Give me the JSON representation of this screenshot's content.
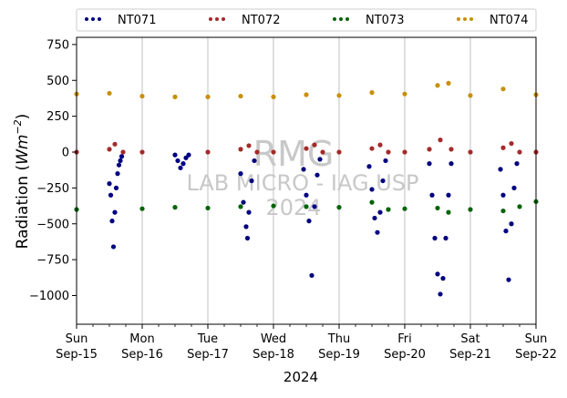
{
  "chart_data": {
    "type": "scatter",
    "title": "",
    "xlabel": "2024",
    "ylabel_main": "Radiation (",
    "ylabel_unit_base": "Wm",
    "ylabel_unit_sup": "−2",
    "ylabel_close": ")",
    "ylim": [
      -1200,
      800
    ],
    "yticks": [
      {
        "v": 750,
        "label": "750"
      },
      {
        "v": 500,
        "label": "500"
      },
      {
        "v": 250,
        "label": "250"
      },
      {
        "v": 0,
        "label": "0"
      },
      {
        "v": -250,
        "label": "−250"
      },
      {
        "v": -500,
        "label": "−500"
      },
      {
        "v": -750,
        "label": "−750"
      },
      {
        "v": -1000,
        "label": "−1000"
      }
    ],
    "xlim": [
      "2024-09-15",
      "2024-09-22"
    ],
    "xticks": [
      {
        "d": 0,
        "day": "Sun",
        "date": "Sep-15"
      },
      {
        "d": 1,
        "day": "Mon",
        "date": "Sep-16"
      },
      {
        "d": 2,
        "day": "Tue",
        "date": "Sep-17"
      },
      {
        "d": 3,
        "day": "Wed",
        "date": "Sep-18"
      },
      {
        "d": 4,
        "day": "Thu",
        "date": "Sep-19"
      },
      {
        "d": 5,
        "day": "Fri",
        "date": "Sep-20"
      },
      {
        "d": 6,
        "day": "Sat",
        "date": "Sep-21"
      },
      {
        "d": 7,
        "day": "Sun",
        "date": "Sep-22"
      }
    ],
    "grid": "vertical",
    "legend_position": "top",
    "watermark": [
      "RMG",
      "LAB MICRO - IAG USP",
      "2024"
    ],
    "series": [
      {
        "name": "NT071",
        "color": "#000080",
        "points": [
          [
            "2024-09-15 12:00",
            -220
          ],
          [
            "2024-09-15 12:30",
            -300
          ],
          [
            "2024-09-15 13:00",
            -480
          ],
          [
            "2024-09-15 13:30",
            -660
          ],
          [
            "2024-09-15 14:00",
            -420
          ],
          [
            "2024-09-15 14:30",
            -250
          ],
          [
            "2024-09-15 15:00",
            -150
          ],
          [
            "2024-09-15 15:30",
            -90
          ],
          [
            "2024-09-15 16:00",
            -60
          ],
          [
            "2024-09-15 16:30",
            -30
          ],
          [
            "2024-09-16 12:00",
            -20
          ],
          [
            "2024-09-16 13:00",
            -60
          ],
          [
            "2024-09-16 14:00",
            -110
          ],
          [
            "2024-09-16 15:00",
            -80
          ],
          [
            "2024-09-16 16:00",
            -40
          ],
          [
            "2024-09-16 17:00",
            -20
          ],
          [
            "2024-09-17 12:00",
            -150
          ],
          [
            "2024-09-17 13:00",
            -350
          ],
          [
            "2024-09-17 14:00",
            -520
          ],
          [
            "2024-09-17 14:30",
            -600
          ],
          [
            "2024-09-17 15:00",
            -420
          ],
          [
            "2024-09-17 16:00",
            -200
          ],
          [
            "2024-09-17 17:00",
            -60
          ],
          [
            "2024-09-18 11:00",
            -120
          ],
          [
            "2024-09-18 12:00",
            -300
          ],
          [
            "2024-09-18 13:00",
            -480
          ],
          [
            "2024-09-18 14:00",
            -860
          ],
          [
            "2024-09-18 15:00",
            -380
          ],
          [
            "2024-09-18 16:00",
            -160
          ],
          [
            "2024-09-18 17:00",
            -50
          ],
          [
            "2024-09-19 11:00",
            -100
          ],
          [
            "2024-09-19 12:00",
            -260
          ],
          [
            "2024-09-19 13:00",
            -460
          ],
          [
            "2024-09-19 14:00",
            -560
          ],
          [
            "2024-09-19 15:00",
            -420
          ],
          [
            "2024-09-19 16:00",
            -200
          ],
          [
            "2024-09-19 17:00",
            -60
          ],
          [
            "2024-09-20 09:00",
            -80
          ],
          [
            "2024-09-20 10:00",
            -300
          ],
          [
            "2024-09-20 11:00",
            -600
          ],
          [
            "2024-09-20 12:00",
            -850
          ],
          [
            "2024-09-20 13:00",
            -990
          ],
          [
            "2024-09-20 14:00",
            -880
          ],
          [
            "2024-09-20 15:00",
            -600
          ],
          [
            "2024-09-20 16:00",
            -300
          ],
          [
            "2024-09-20 17:00",
            -80
          ],
          [
            "2024-09-21 11:00",
            -120
          ],
          [
            "2024-09-21 12:00",
            -300
          ],
          [
            "2024-09-21 13:00",
            -550
          ],
          [
            "2024-09-21 14:00",
            -890
          ],
          [
            "2024-09-21 15:00",
            -500
          ],
          [
            "2024-09-21 16:00",
            -250
          ],
          [
            "2024-09-21 17:00",
            -80
          ]
        ]
      },
      {
        "name": "NT072",
        "color": "#a52a2a",
        "points": [
          [
            "2024-09-15 00:00",
            0
          ],
          [
            "2024-09-15 12:00",
            20
          ],
          [
            "2024-09-15 14:00",
            55
          ],
          [
            "2024-09-15 17:00",
            0
          ],
          [
            "2024-09-16 00:00",
            0
          ],
          [
            "2024-09-17 00:00",
            0
          ],
          [
            "2024-09-17 12:00",
            20
          ],
          [
            "2024-09-17 15:00",
            45
          ],
          [
            "2024-09-17 18:00",
            0
          ],
          [
            "2024-09-18 00:00",
            0
          ],
          [
            "2024-09-18 12:00",
            25
          ],
          [
            "2024-09-18 15:00",
            50
          ],
          [
            "2024-09-18 18:00",
            0
          ],
          [
            "2024-09-19 00:00",
            0
          ],
          [
            "2024-09-19 12:00",
            25
          ],
          [
            "2024-09-19 15:00",
            50
          ],
          [
            "2024-09-19 18:00",
            0
          ],
          [
            "2024-09-20 00:00",
            0
          ],
          [
            "2024-09-20 09:00",
            20
          ],
          [
            "2024-09-20 13:00",
            85
          ],
          [
            "2024-09-20 17:00",
            20
          ],
          [
            "2024-09-21 00:00",
            0
          ],
          [
            "2024-09-21 12:00",
            30
          ],
          [
            "2024-09-21 15:00",
            60
          ],
          [
            "2024-09-21 18:00",
            0
          ],
          [
            "2024-09-22 00:00",
            0
          ]
        ]
      },
      {
        "name": "NT073",
        "color": "#006400",
        "points": [
          [
            "2024-09-15 00:00",
            -400
          ],
          [
            "2024-09-16 00:00",
            -395
          ],
          [
            "2024-09-16 12:00",
            -385
          ],
          [
            "2024-09-17 00:00",
            -390
          ],
          [
            "2024-09-17 12:00",
            -380
          ],
          [
            "2024-09-18 00:00",
            -375
          ],
          [
            "2024-09-18 12:00",
            -380
          ],
          [
            "2024-09-19 00:00",
            -385
          ],
          [
            "2024-09-19 12:00",
            -350
          ],
          [
            "2024-09-19 18:00",
            -400
          ],
          [
            "2024-09-20 00:00",
            -395
          ],
          [
            "2024-09-20 12:00",
            -390
          ],
          [
            "2024-09-20 16:00",
            -420
          ],
          [
            "2024-09-21 00:00",
            -400
          ],
          [
            "2024-09-21 12:00",
            -410
          ],
          [
            "2024-09-21 18:00",
            -380
          ],
          [
            "2024-09-22 00:00",
            -345
          ]
        ]
      },
      {
        "name": "NT074",
        "color": "#c8900a",
        "points": [
          [
            "2024-09-15 00:00",
            405
          ],
          [
            "2024-09-15 12:00",
            410
          ],
          [
            "2024-09-16 00:00",
            390
          ],
          [
            "2024-09-16 12:00",
            385
          ],
          [
            "2024-09-17 00:00",
            385
          ],
          [
            "2024-09-17 12:00",
            390
          ],
          [
            "2024-09-18 00:00",
            385
          ],
          [
            "2024-09-18 12:00",
            400
          ],
          [
            "2024-09-19 00:00",
            395
          ],
          [
            "2024-09-19 12:00",
            415
          ],
          [
            "2024-09-20 00:00",
            405
          ],
          [
            "2024-09-20 12:00",
            465
          ],
          [
            "2024-09-20 16:00",
            480
          ],
          [
            "2024-09-21 00:00",
            395
          ],
          [
            "2024-09-21 12:00",
            440
          ],
          [
            "2024-09-22 00:00",
            400
          ]
        ]
      }
    ]
  }
}
